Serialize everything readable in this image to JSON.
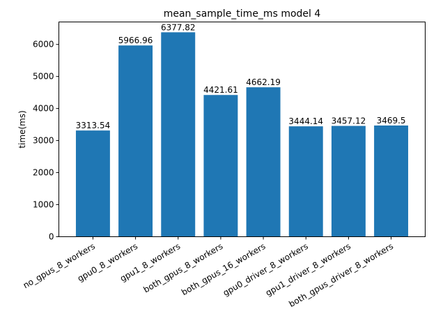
{
  "chart_data": {
    "type": "bar",
    "title": "mean_sample_time_ms model 4",
    "xlabel": "",
    "ylabel": "time(ms)",
    "ylim": [
      0,
      6700
    ],
    "yticks": [
      0,
      1000,
      2000,
      3000,
      4000,
      5000,
      6000
    ],
    "grid": false,
    "legend": "none",
    "bar_color": "#1f77b4",
    "categories": [
      "no_gpus_8_workers",
      "gpu0_8_workers",
      "gpu1_8_workers",
      "both_gpus_8_workers",
      "both_gpus_16_workers",
      "gpu0_driver_8_workers",
      "gpu1_driver_8_workers",
      "both_gpus_driver_8_workers"
    ],
    "values": [
      3313.54,
      5966.96,
      6377.82,
      4421.61,
      4662.19,
      3444.14,
      3457.12,
      3469.5
    ],
    "value_labels": [
      "3313.54",
      "5966.96",
      "6377.82",
      "4421.61",
      "4662.19",
      "3444.14",
      "3457.12",
      "3469.5"
    ]
  }
}
